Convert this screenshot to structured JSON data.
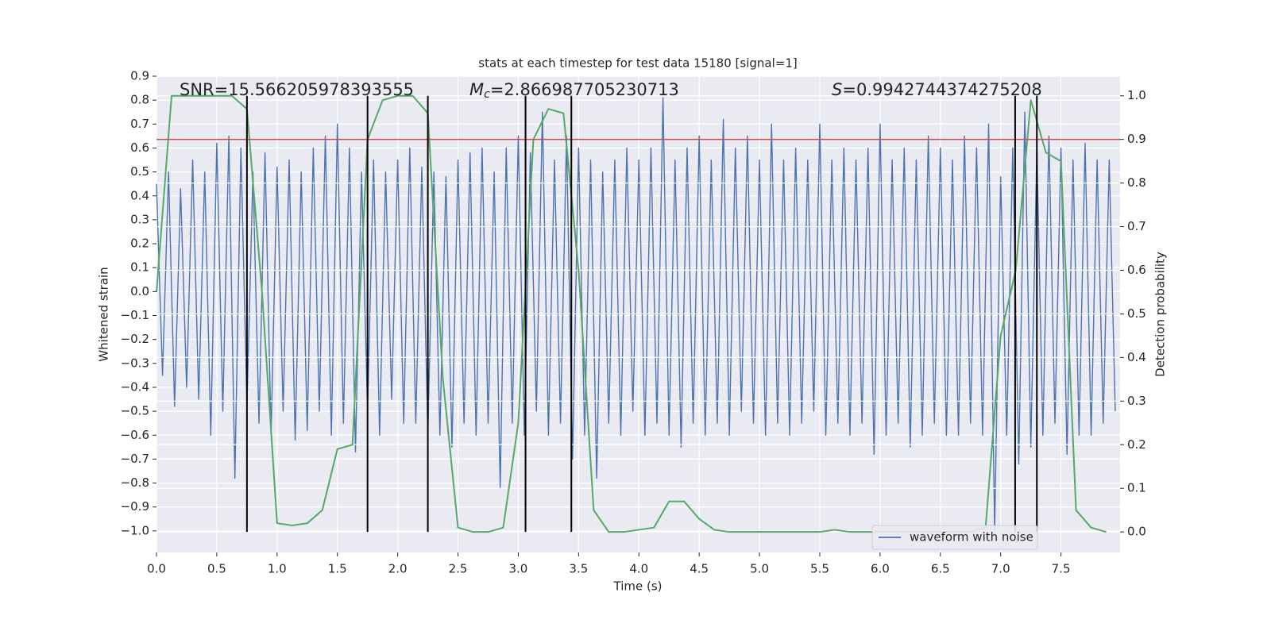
{
  "chart_data": {
    "type": "line",
    "title": "stats at each timestep for test data 15180 [signal=1]",
    "xlabel": "Time (s)",
    "ylabel": "Whitened strain",
    "y2label": "Detection probability",
    "annotations": [
      [
        "SNR=15.566205978393555"
      ],
      [
        "M",
        "c",
        "=2.866987705230713"
      ],
      [
        "S",
        "=0.9942744374275208"
      ]
    ],
    "xlim": [
      0,
      7.99
    ],
    "ylim": [
      -1.09,
      0.9
    ],
    "y2lim": [
      -0.047,
      1.045
    ],
    "xticks": [
      {
        "value": 0,
        "label": "0.0"
      },
      0.5,
      {
        "value": 1,
        "label": "1.0"
      },
      1.5,
      {
        "value": 2,
        "label": "2.0"
      },
      2.5,
      {
        "value": 3,
        "label": "3.0"
      },
      3.5,
      {
        "value": 4,
        "label": "4.0"
      },
      4.5,
      {
        "value": 5,
        "label": "5.0"
      },
      5.5,
      {
        "value": 6,
        "label": "6.0"
      },
      6.5,
      {
        "value": 7,
        "label": "7.0"
      },
      7.5
    ],
    "yticks": [
      {
        "value": 0.9,
        "label": "0.9"
      },
      {
        "value": 0.8,
        "label": "0.8"
      },
      {
        "value": 0.7,
        "label": "0.7"
      },
      {
        "value": 0.6,
        "label": "0.6"
      },
      {
        "value": 0.5,
        "label": "0.5"
      },
      {
        "value": 0.4,
        "label": "0.4"
      },
      {
        "value": 0.3,
        "label": "0.3"
      },
      {
        "value": 0.2,
        "label": "0.2"
      },
      {
        "value": 0.1,
        "label": "0.1"
      },
      {
        "value": 0,
        "label": "0.0"
      },
      {
        "value": -0.1,
        "label": "−0.1"
      },
      {
        "value": -0.2,
        "label": "−0.2"
      },
      {
        "value": -0.3,
        "label": "−0.3"
      },
      {
        "value": -0.4,
        "label": "−0.4"
      },
      {
        "value": -0.5,
        "label": "−0.5"
      },
      {
        "value": -0.6,
        "label": "−0.6"
      },
      {
        "value": -0.7,
        "label": "−0.7"
      },
      {
        "value": -0.8,
        "label": "−0.8"
      },
      {
        "value": -0.9,
        "label": "−0.9"
      },
      {
        "value": -1,
        "label": "−1.0"
      }
    ],
    "y2ticks": [
      {
        "value": 0,
        "label": "0.0"
      },
      0.1,
      0.2,
      0.3,
      0.4,
      0.5,
      0.6,
      0.7,
      0.8,
      0.9,
      {
        "value": 1,
        "label": "1.0"
      }
    ],
    "grid": true,
    "legend": "lower right",
    "markers": {
      "x": [
        0.75,
        1.75,
        2.25,
        3.06,
        3.44,
        7.12,
        7.3
      ],
      "color": "#000000"
    },
    "threshold": {
      "value": 0.9,
      "axis": "y2",
      "color": "#c44e52"
    },
    "series": [
      {
        "name": "waveform with noise",
        "color": "#4c72b0",
        "x": [
          0,
          0.05,
          0.1,
          0.15,
          0.2,
          0.25,
          0.3,
          0.35,
          0.4,
          0.45,
          0.5,
          0.55,
          0.6,
          0.65,
          0.7,
          0.75,
          0.8,
          0.85,
          0.9,
          0.95,
          1,
          1.05,
          1.1,
          1.15,
          1.2,
          1.25,
          1.3,
          1.35,
          1.4,
          1.45,
          1.5,
          1.55,
          1.6,
          1.65,
          1.7,
          1.75,
          1.8,
          1.85,
          1.9,
          1.95,
          2,
          2.05,
          2.1,
          2.15,
          2.2,
          2.25,
          2.3,
          2.35,
          2.4,
          2.45,
          2.5,
          2.55,
          2.6,
          2.65,
          2.7,
          2.75,
          2.8,
          2.85,
          2.9,
          2.95,
          3,
          3.05,
          3.1,
          3.15,
          3.2,
          3.25,
          3.3,
          3.35,
          3.4,
          3.45,
          3.5,
          3.55,
          3.6,
          3.65,
          3.7,
          3.75,
          3.8,
          3.85,
          3.9,
          3.95,
          4,
          4.05,
          4.1,
          4.15,
          4.2,
          4.25,
          4.3,
          4.35,
          4.4,
          4.45,
          4.5,
          4.55,
          4.6,
          4.65,
          4.7,
          4.75,
          4.8,
          4.85,
          4.9,
          4.95,
          5,
          5.05,
          5.1,
          5.15,
          5.2,
          5.25,
          5.3,
          5.35,
          5.4,
          5.45,
          5.5,
          5.55,
          5.6,
          5.65,
          5.7,
          5.75,
          5.8,
          5.85,
          5.9,
          5.95,
          6,
          6.05,
          6.1,
          6.15,
          6.2,
          6.25,
          6.3,
          6.35,
          6.4,
          6.45,
          6.5,
          6.55,
          6.6,
          6.65,
          6.7,
          6.75,
          6.8,
          6.85,
          6.9,
          6.95,
          7,
          7.05,
          7.1,
          7.15,
          7.2,
          7.25,
          7.3,
          7.35,
          7.4,
          7.45,
          7.5,
          7.55,
          7.6,
          7.65,
          7.7,
          7.75,
          7.8,
          7.85,
          7.9,
          7.95
        ],
        "values": [
          0.45,
          -0.35,
          0.5,
          -0.48,
          0.43,
          -0.4,
          0.55,
          -0.45,
          0.5,
          -0.6,
          0.62,
          -0.5,
          0.65,
          -0.78,
          0.6,
          -0.48,
          0.5,
          -0.55,
          0.58,
          -0.6,
          0.52,
          -0.5,
          0.55,
          -0.62,
          0.5,
          -0.58,
          0.6,
          -0.5,
          0.65,
          -0.6,
          0.7,
          -0.55,
          0.6,
          -0.67,
          0.5,
          -0.5,
          0.55,
          -0.6,
          0.5,
          -0.45,
          0.55,
          -0.55,
          0.6,
          -0.55,
          0.52,
          -0.6,
          0.5,
          -0.6,
          0.48,
          -0.65,
          0.55,
          -0.55,
          0.58,
          -0.6,
          0.6,
          -0.55,
          0.5,
          -0.82,
          0.6,
          -0.55,
          0.65,
          -0.6,
          0.58,
          -0.5,
          0.75,
          -0.6,
          0.55,
          -0.55,
          0.65,
          -0.7,
          0.6,
          -0.6,
          0.55,
          -0.78,
          0.5,
          -0.55,
          0.55,
          -0.6,
          0.6,
          -0.5,
          0.55,
          -0.6,
          0.6,
          -0.55,
          0.81,
          -0.6,
          0.55,
          -0.65,
          0.6,
          -0.55,
          0.65,
          -0.6,
          0.55,
          -0.55,
          0.72,
          -0.6,
          0.6,
          -0.5,
          0.65,
          -0.55,
          0.55,
          -0.6,
          0.7,
          -0.55,
          0.55,
          -0.6,
          0.6,
          -0.55,
          0.55,
          -0.5,
          0.7,
          -0.6,
          0.55,
          -0.55,
          0.6,
          -0.6,
          0.55,
          -0.55,
          0.6,
          -0.68,
          0.7,
          -0.6,
          0.55,
          -0.55,
          0.6,
          -0.65,
          0.55,
          -0.6,
          0.65,
          -0.55,
          0.6,
          -0.6,
          0.55,
          -0.6,
          0.65,
          -0.55,
          0.6,
          -0.6,
          0.7,
          -1.0,
          0.48,
          -0.6,
          0.6,
          -0.72,
          0.75,
          -0.65,
          0.6,
          -0.6,
          0.65,
          -0.55,
          0.6,
          -0.68,
          0.55,
          -0.6,
          0.62,
          -0.6,
          0.55,
          -0.55,
          0.55,
          -0.5
        ]
      },
      {
        "color": "#55a868",
        "axis": "y2",
        "x": [
          0,
          0.125,
          0.25,
          0.375,
          0.5,
          0.625,
          0.75,
          0.875,
          1,
          1.125,
          1.25,
          1.375,
          1.5,
          1.625,
          1.75,
          1.875,
          2,
          2.125,
          2.25,
          2.375,
          2.5,
          2.625,
          2.75,
          2.875,
          3,
          3.125,
          3.25,
          3.375,
          3.5,
          3.625,
          3.75,
          3.875,
          4,
          4.125,
          4.25,
          4.375,
          4.5,
          4.625,
          4.75,
          4.875,
          5,
          5.125,
          5.25,
          5.375,
          5.5,
          5.625,
          5.75,
          5.875,
          6,
          6.125,
          6.25,
          6.375,
          6.5,
          6.625,
          6.75,
          6.875,
          7,
          7.125,
          7.25,
          7.375,
          7.5,
          7.625,
          7.75,
          7.875
        ],
        "values": [
          0.55,
          1,
          1,
          1,
          1,
          1,
          0.97,
          0.55,
          0.02,
          0.015,
          0.02,
          0.05,
          0.19,
          0.2,
          0.9,
          0.99,
          1,
          1,
          0.96,
          0.35,
          0.01,
          0,
          0,
          0.01,
          0.25,
          0.9,
          0.97,
          0.96,
          0.6,
          0.05,
          0,
          0,
          0.005,
          0.01,
          0.07,
          0.07,
          0.03,
          0.005,
          0,
          0,
          0,
          0,
          0,
          0,
          0,
          0.005,
          0,
          0,
          0,
          0,
          0,
          0,
          0,
          0,
          0,
          0.01,
          0.45,
          0.6,
          0.99,
          0.87,
          0.85,
          0.05,
          0.01,
          0
        ]
      }
    ]
  }
}
